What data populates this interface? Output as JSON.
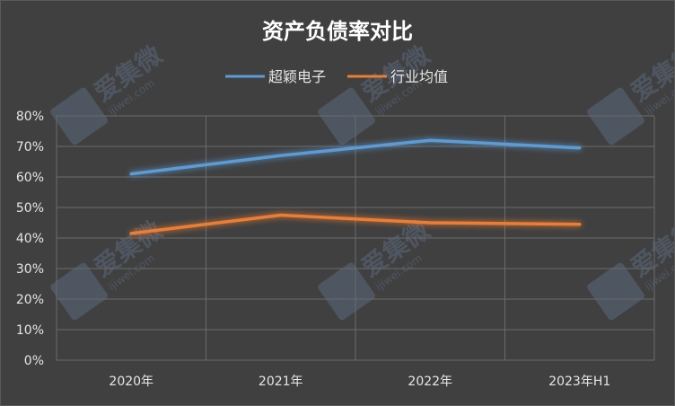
{
  "chart_data": {
    "type": "line",
    "title": "资产负债率对比",
    "xlabel": "",
    "ylabel": "",
    "categories": [
      "2020年",
      "2021年",
      "2022年",
      "2023年H1"
    ],
    "series": [
      {
        "name": "超颖电子",
        "color": "#5b9bd5",
        "values": [
          61.0,
          67.0,
          72.0,
          69.5
        ]
      },
      {
        "name": "行业均值",
        "color": "#ed7d31",
        "values": [
          41.5,
          47.5,
          45.0,
          44.5
        ]
      }
    ],
    "ylim": [
      0,
      80
    ],
    "yticks": [
      "0%",
      "10%",
      "20%",
      "30%",
      "40%",
      "50%",
      "60%",
      "70%",
      "80%"
    ],
    "grid": true,
    "legend_position": "top"
  },
  "watermark": {
    "brand_text": "爱集微",
    "url_text": "ijiwei.com"
  }
}
